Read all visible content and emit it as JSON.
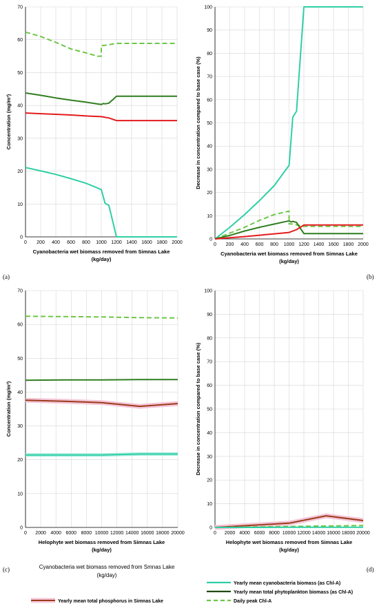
{
  "colors": {
    "cyano": "#2ecfa4",
    "phyto": "#2e7d1e",
    "peak": "#6cc644",
    "tp_red": "#e31a1c",
    "tp_brown": "#9c3a1a",
    "tp_halo": "#f4c6d8",
    "grid": "#d6d6d6"
  },
  "panel_labels": [
    "(a)",
    "(b)",
    "(c)",
    "(d)"
  ],
  "legend": {
    "title_line1": "Cyanobacteria wet biomass removed from Smnas Lake",
    "title_line2": "(kg/day)",
    "items": [
      {
        "label": "Yearly mean total phosphorus in Simnas Lake",
        "icon": "brown-line-pink-halo"
      },
      {
        "label": "Yearly mean cyanobacteria biomass (as Chl-A)",
        "icon": "cyan-line"
      },
      {
        "label": "Yearly mean total phytoplankton biomass (as Chl-A)",
        "icon": "dark-green-line"
      },
      {
        "label": "Daily peak Chl-A",
        "icon": "green-dashed-line"
      }
    ]
  },
  "chart_data": [
    {
      "id": "a",
      "type": "line",
      "xlabel_line1": "Cyanobacteria wet biomass  removed from Simnas Lake",
      "xlabel_line2": "(kg/day)",
      "ylabel": "Concentration (mg/m³)",
      "xlim": [
        0,
        2000
      ],
      "ylim": [
        0,
        70
      ],
      "xticks": [
        0,
        200,
        400,
        600,
        800,
        1000,
        1200,
        1400,
        1600,
        1800,
        2000
      ],
      "yticks": [
        0,
        10,
        20,
        30,
        40,
        50,
        60,
        70
      ],
      "grid": true,
      "series": [
        {
          "color": "peak",
          "dashed": true,
          "x": [
            0,
            200,
            400,
            600,
            800,
            950,
            1000,
            1000,
            1050,
            1200,
            1400,
            1600,
            1800,
            2000
          ],
          "y": [
            62.3,
            61,
            59.2,
            57.2,
            56,
            55,
            55,
            58.2,
            58.3,
            58.9,
            58.9,
            58.9,
            58.9,
            58.9
          ]
        },
        {
          "color": "phyto",
          "x": [
            0,
            200,
            400,
            600,
            800,
            1000,
            1030,
            1050,
            1100,
            1150,
            1200,
            1400,
            1600,
            1800,
            2000
          ],
          "y": [
            43.8,
            43.1,
            42.3,
            41.6,
            41,
            40.3,
            40.6,
            40.5,
            40.7,
            41.7,
            42.8,
            42.8,
            42.8,
            42.8,
            42.8
          ]
        },
        {
          "color": "tp_red",
          "x": [
            0,
            200,
            400,
            600,
            800,
            1000,
            1100,
            1200,
            1400,
            1600,
            1800,
            2000
          ],
          "y": [
            37.7,
            37.5,
            37.3,
            37.1,
            36.8,
            36.6,
            36.2,
            35.4,
            35.4,
            35.4,
            35.4,
            35.4
          ]
        },
        {
          "color": "cyano",
          "x": [
            0,
            200,
            400,
            600,
            800,
            1000,
            1050,
            1100,
            1200,
            1400,
            1600,
            1800,
            2000
          ],
          "y": [
            21.1,
            20.1,
            19,
            17.7,
            16.3,
            14.4,
            10.2,
            9.6,
            0,
            0,
            0,
            0,
            0
          ]
        }
      ]
    },
    {
      "id": "b",
      "type": "line",
      "xlabel_line1": "Cyanobacteria wet biomass  removed from Simnas Lake",
      "xlabel_line2": "(kg/day)",
      "ylabel": "Decrease in concentration  compared to base case (%)",
      "xlim": [
        0,
        2000
      ],
      "ylim": [
        0,
        100
      ],
      "xticks": [
        0,
        200,
        400,
        600,
        800,
        1000,
        1200,
        1400,
        1600,
        1800,
        2000
      ],
      "yticks": [
        0,
        10,
        20,
        30,
        40,
        50,
        60,
        70,
        80,
        90,
        100
      ],
      "grid": true,
      "series": [
        {
          "color": "cyano",
          "x": [
            0,
            200,
            400,
            600,
            800,
            1000,
            1050,
            1100,
            1200,
            1400,
            1600,
            1800,
            2000
          ],
          "y": [
            0,
            5,
            10.5,
            16.5,
            23,
            31.7,
            52.5,
            55,
            100,
            100,
            100,
            100,
            100
          ]
        },
        {
          "color": "peak",
          "dashed": true,
          "x": [
            0,
            200,
            400,
            600,
            800,
            1000,
            1000,
            1050,
            1200,
            1400,
            1600,
            1800,
            2000
          ],
          "y": [
            0,
            2.5,
            5,
            8,
            10.5,
            12,
            6.5,
            6.4,
            5.4,
            5.4,
            5.4,
            5.4,
            5.4
          ]
        },
        {
          "color": "phyto",
          "x": [
            0,
            200,
            400,
            600,
            800,
            1000,
            1030,
            1050,
            1100,
            1150,
            1200,
            1400,
            1600,
            1800,
            2000
          ],
          "y": [
            0,
            1.5,
            3.4,
            5,
            6.4,
            7.8,
            7.3,
            7.6,
            7.1,
            4.7,
            2.3,
            2.3,
            2.3,
            2.3,
            2.3
          ]
        },
        {
          "color": "tp_red",
          "x": [
            0,
            200,
            400,
            600,
            800,
            1000,
            1100,
            1200,
            1400,
            1600,
            1800,
            2000
          ],
          "y": [
            0,
            0.5,
            1,
            1.6,
            2.2,
            2.8,
            4,
            6,
            6,
            6,
            6,
            6
          ]
        }
      ]
    },
    {
      "id": "c",
      "type": "line",
      "xlabel_line1": "Helophyte wet biomass removed from Simnas Lake",
      "xlabel_line2": "(kg/day)",
      "ylabel": "Concentration (mg/m³)",
      "xlim": [
        0,
        20000
      ],
      "ylim": [
        0,
        70
      ],
      "xticks": [
        0,
        2000,
        4000,
        6000,
        8000,
        10000,
        12000,
        14000,
        16000,
        18000,
        20000
      ],
      "yticks": [
        0,
        10,
        20,
        30,
        40,
        50,
        60,
        70
      ],
      "grid": true,
      "series": [
        {
          "color": "peak",
          "dashed": true,
          "x": [
            0,
            5000,
            10000,
            15000,
            20000
          ],
          "y": [
            62.4,
            62.3,
            62.2,
            62,
            61.9
          ]
        },
        {
          "color": "phyto",
          "x": [
            0,
            5000,
            10000,
            15000,
            20000
          ],
          "y": [
            43.5,
            43.6,
            43.6,
            43.7,
            43.7
          ]
        },
        {
          "color": "tp_brown",
          "halo": true,
          "x": [
            0,
            5000,
            10000,
            15000,
            20000
          ],
          "y": [
            37.6,
            37.3,
            36.9,
            35.8,
            36.6
          ]
        },
        {
          "color": "cyano",
          "halo_cyan": true,
          "x": [
            0,
            5000,
            10000,
            15000,
            20000
          ],
          "y": [
            21.4,
            21.4,
            21.4,
            21.7,
            21.7
          ]
        }
      ]
    },
    {
      "id": "d",
      "type": "line",
      "xlabel_line1": "Helophyte wet biomass removed from Simnas Lake",
      "xlabel_line2": "(kg/day)",
      "ylabel": "Decrease in concentration compared to base case (%)",
      "xlim": [
        0,
        20000
      ],
      "ylim": [
        0,
        100
      ],
      "xticks": [
        0,
        2000,
        4000,
        6000,
        8000,
        10000,
        12000,
        14000,
        16000,
        18000,
        20000
      ],
      "yticks": [
        0,
        10,
        20,
        30,
        40,
        50,
        60,
        70,
        80,
        90,
        100
      ],
      "grid": true,
      "series": [
        {
          "color": "tp_brown",
          "halo": true,
          "x": [
            0,
            5000,
            10000,
            15000,
            20000
          ],
          "y": [
            0,
            0.9,
            1.8,
            4.9,
            2.9
          ]
        },
        {
          "color": "peak",
          "dashed": true,
          "x": [
            0,
            5000,
            10000,
            15000,
            20000
          ],
          "y": [
            0,
            0.2,
            0.4,
            0.6,
            0.8
          ]
        },
        {
          "color": "cyano",
          "x": [
            0,
            5000,
            10000,
            15000,
            20000
          ],
          "y": [
            0,
            0,
            0.05,
            0.1,
            0.1
          ]
        }
      ]
    }
  ]
}
